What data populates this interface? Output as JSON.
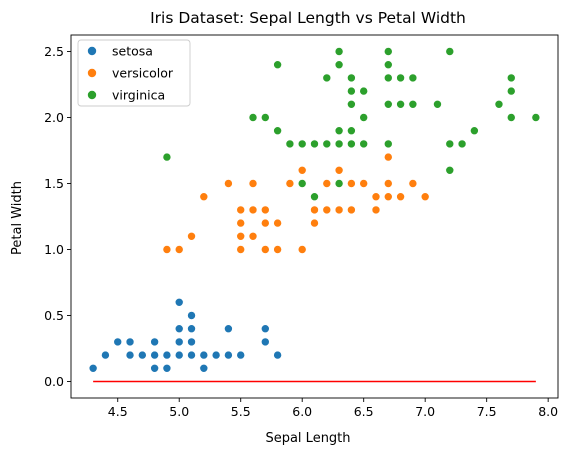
{
  "chart_data": {
    "type": "scatter",
    "title": "Iris Dataset: Sepal Length vs Petal Width",
    "xlabel": "Sepal Length",
    "ylabel": "Petal Width",
    "xlim": [
      4.12,
      8.08
    ],
    "ylim": [
      -0.125,
      2.625
    ],
    "xticks": [
      "4.5",
      "5.0",
      "5.5",
      "6.0",
      "6.5",
      "7.0",
      "7.5",
      "8.0"
    ],
    "xtick_values": [
      4.5,
      5.0,
      5.5,
      6.0,
      6.5,
      7.0,
      7.5,
      8.0
    ],
    "yticks": [
      "0.0",
      "0.5",
      "1.0",
      "1.5",
      "2.0",
      "2.5"
    ],
    "ytick_values": [
      0.0,
      0.5,
      1.0,
      1.5,
      2.0,
      2.5
    ],
    "grid": false,
    "legend_position": "top-left",
    "series": [
      {
        "name": "setosa",
        "color": "#1f77b4",
        "points": [
          [
            4.3,
            0.1
          ],
          [
            4.4,
            0.2
          ],
          [
            4.5,
            0.3
          ],
          [
            4.6,
            0.2
          ],
          [
            4.6,
            0.3
          ],
          [
            4.7,
            0.2
          ],
          [
            4.8,
            0.1
          ],
          [
            4.8,
            0.2
          ],
          [
            4.8,
            0.3
          ],
          [
            4.9,
            0.1
          ],
          [
            4.9,
            0.2
          ],
          [
            5.0,
            0.2
          ],
          [
            5.0,
            0.3
          ],
          [
            5.0,
            0.4
          ],
          [
            5.0,
            0.6
          ],
          [
            5.1,
            0.2
          ],
          [
            5.1,
            0.3
          ],
          [
            5.1,
            0.4
          ],
          [
            5.1,
            0.5
          ],
          [
            5.2,
            0.1
          ],
          [
            5.2,
            0.2
          ],
          [
            5.3,
            0.2
          ],
          [
            5.4,
            0.2
          ],
          [
            5.4,
            0.4
          ],
          [
            5.5,
            0.2
          ],
          [
            5.7,
            0.3
          ],
          [
            5.7,
            0.4
          ],
          [
            5.8,
            0.2
          ]
        ]
      },
      {
        "name": "versicolor",
        "color": "#ff7f0e",
        "points": [
          [
            4.9,
            1.0
          ],
          [
            5.0,
            1.0
          ],
          [
            5.1,
            1.1
          ],
          [
            5.2,
            1.4
          ],
          [
            5.4,
            1.5
          ],
          [
            5.5,
            1.0
          ],
          [
            5.5,
            1.1
          ],
          [
            5.5,
            1.2
          ],
          [
            5.5,
            1.3
          ],
          [
            5.6,
            1.1
          ],
          [
            5.6,
            1.3
          ],
          [
            5.6,
            1.5
          ],
          [
            5.7,
            1.0
          ],
          [
            5.7,
            1.2
          ],
          [
            5.7,
            1.3
          ],
          [
            5.8,
            1.0
          ],
          [
            5.8,
            1.2
          ],
          [
            5.9,
            1.5
          ],
          [
            6.0,
            1.0
          ],
          [
            6.0,
            1.5
          ],
          [
            6.0,
            1.6
          ],
          [
            6.1,
            1.2
          ],
          [
            6.1,
            1.3
          ],
          [
            6.1,
            1.4
          ],
          [
            6.2,
            1.3
          ],
          [
            6.2,
            1.5
          ],
          [
            6.3,
            1.3
          ],
          [
            6.3,
            1.5
          ],
          [
            6.3,
            1.6
          ],
          [
            6.4,
            1.3
          ],
          [
            6.4,
            1.5
          ],
          [
            6.5,
            1.5
          ],
          [
            6.6,
            1.3
          ],
          [
            6.6,
            1.4
          ],
          [
            6.7,
            1.4
          ],
          [
            6.7,
            1.5
          ],
          [
            6.7,
            1.7
          ],
          [
            6.8,
            1.4
          ],
          [
            6.9,
            1.5
          ],
          [
            7.0,
            1.4
          ]
        ]
      },
      {
        "name": "virginica",
        "color": "#2ca02c",
        "points": [
          [
            4.9,
            1.7
          ],
          [
            5.6,
            2.0
          ],
          [
            5.7,
            2.0
          ],
          [
            5.8,
            1.9
          ],
          [
            5.8,
            2.4
          ],
          [
            5.9,
            1.8
          ],
          [
            6.0,
            1.5
          ],
          [
            6.0,
            1.8
          ],
          [
            6.1,
            1.4
          ],
          [
            6.1,
            1.8
          ],
          [
            6.2,
            1.8
          ],
          [
            6.2,
            2.3
          ],
          [
            6.3,
            1.5
          ],
          [
            6.3,
            1.8
          ],
          [
            6.3,
            1.9
          ],
          [
            6.3,
            2.4
          ],
          [
            6.3,
            2.5
          ],
          [
            6.4,
            1.8
          ],
          [
            6.4,
            1.9
          ],
          [
            6.4,
            2.1
          ],
          [
            6.4,
            2.2
          ],
          [
            6.4,
            2.3
          ],
          [
            6.5,
            1.8
          ],
          [
            6.5,
            2.0
          ],
          [
            6.5,
            2.2
          ],
          [
            6.7,
            1.8
          ],
          [
            6.7,
            2.1
          ],
          [
            6.7,
            2.3
          ],
          [
            6.7,
            2.4
          ],
          [
            6.7,
            2.5
          ],
          [
            6.8,
            2.1
          ],
          [
            6.8,
            2.3
          ],
          [
            6.9,
            2.1
          ],
          [
            6.9,
            2.3
          ],
          [
            7.1,
            2.1
          ],
          [
            7.2,
            1.6
          ],
          [
            7.2,
            1.8
          ],
          [
            7.2,
            2.5
          ],
          [
            7.3,
            1.8
          ],
          [
            7.4,
            1.9
          ],
          [
            7.6,
            2.1
          ],
          [
            7.7,
            2.0
          ],
          [
            7.7,
            2.2
          ],
          [
            7.7,
            2.3
          ],
          [
            7.9,
            2.0
          ]
        ]
      }
    ],
    "reference_line": {
      "color": "#ff0000",
      "points": [
        [
          4.3,
          0.0
        ],
        [
          7.9,
          0.0
        ]
      ]
    }
  }
}
